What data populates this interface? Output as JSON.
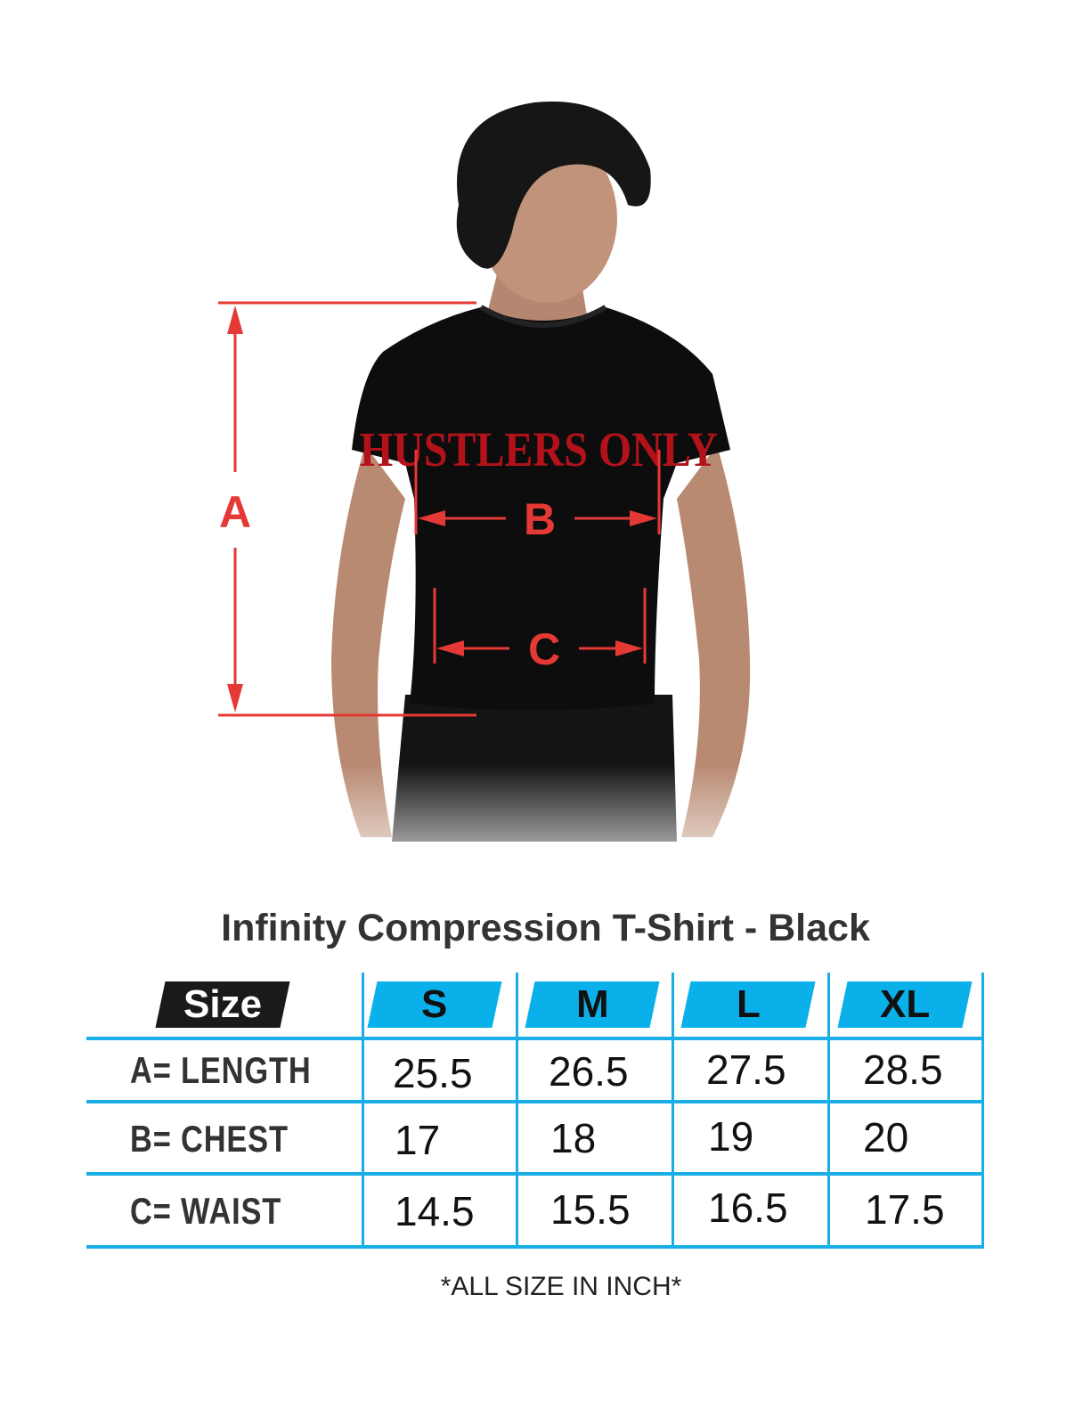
{
  "diagram": {
    "shirt_print": "HUSTLERS ONLY",
    "labels": {
      "a": "A",
      "b": "B",
      "c": "C"
    },
    "measure_color": "#e53935"
  },
  "title": "Infinity Compression T-Shirt - Black",
  "table": {
    "corner_label": "Size",
    "header_color": "#0ab0ea",
    "sizes": [
      "S",
      "M",
      "L",
      "XL"
    ],
    "rows": [
      {
        "label": "A= LENGTH",
        "values": [
          "25.5",
          "26.5",
          "27.5",
          "28.5"
        ]
      },
      {
        "label": "B= CHEST",
        "values": [
          "17",
          "18",
          "19",
          "20"
        ]
      },
      {
        "label": "C= WAIST",
        "values": [
          "14.5",
          "15.5",
          "16.5",
          "17.5"
        ]
      }
    ]
  },
  "footnote": "*ALL SIZE IN INCH*"
}
